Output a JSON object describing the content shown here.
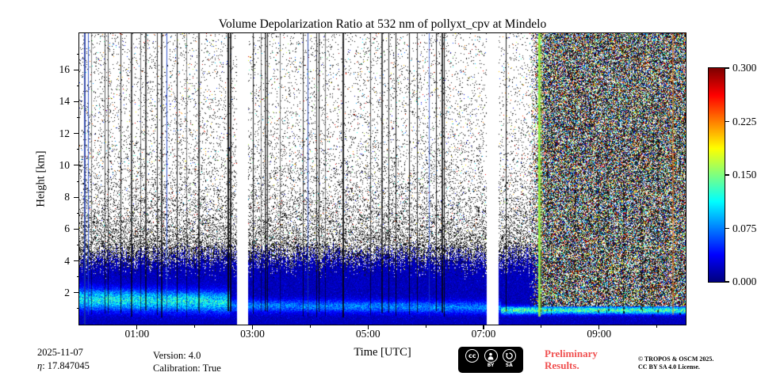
{
  "page": {
    "background": "#ffffff"
  },
  "chart_data": {
    "type": "heatmap",
    "title": "Volume Depolarization Ratio at 532 nm of pollyxt_cpv at Mindelo",
    "xlabel": "Time [UTC]",
    "ylabel": "Height [km]",
    "x_range_hours_utc": [
      0,
      10.5
    ],
    "x_ticks": [
      "01:00",
      "03:00",
      "05:00",
      "07:00",
      "09:00"
    ],
    "x_tick_hours": [
      1,
      3,
      5,
      7,
      9
    ],
    "y_range_km": [
      0,
      18.3
    ],
    "y_ticks_km": [
      2,
      4,
      6,
      8,
      10,
      12,
      14,
      16
    ],
    "colormap": "jet",
    "clim": [
      0.0,
      0.3
    ],
    "colorbar_ticks": [
      0.3,
      0.225,
      0.15,
      0.075,
      0.0
    ],
    "features": {
      "boundary_layer": "low volume depolarization ratio (~0.00-0.03, blue) from surface up to ~4-5 km",
      "aerosol_layer": "enhanced depolarization band (~0.05-0.12, green-yellow) between ~0.8 and 2.2 km, strongest 00:00-02:30, thinning to ~1 km afterwards",
      "noise_region": "random black speckle noise above ~5 km, density increasing downward toward signal limit",
      "daylight_noise_region": "dense multicolored background noise above ~1.2 km after ~07:50 UTC",
      "data_gaps_hours": [
        [
          2.72,
          2.92
        ],
        [
          7.05,
          7.25
        ]
      ],
      "calibration_stripe_hour": 7.96
    },
    "render": {
      "seed": 1337,
      "night_stripes": 42,
      "day_dash_columns": 16,
      "day_start_hour": 7.78,
      "x_minor_hours": [
        2,
        4,
        6,
        8,
        10
      ],
      "y_minor_km": [
        1,
        3,
        5,
        7,
        9,
        11,
        13,
        15,
        17
      ]
    }
  },
  "footer": {
    "date": "2025-11-07",
    "eta_symbol": "η",
    "eta_rest": ": 17.847045",
    "version": "Version: 4.0",
    "calibration": "Calibration: True",
    "preliminary": [
      "Preliminary",
      "Results."
    ],
    "copyright": [
      "© TROPOS & OSCM 2025.",
      "CC BY SA 4.0 License."
    ],
    "license": {
      "cc_label": "cc",
      "by_label": "BY",
      "sa_label": "SA"
    }
  },
  "colors": {
    "preliminary_red": "#f05050",
    "axis_black": "#000000"
  }
}
